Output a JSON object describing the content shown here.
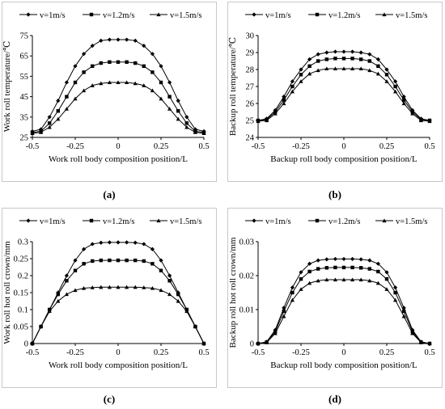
{
  "legend": [
    "v=1m/s",
    "v=1.2m/s",
    "v=1.5m/s"
  ],
  "captions": [
    "(a)",
    "(b)",
    "(c)",
    "(d)"
  ],
  "chart_data": [
    {
      "type": "line",
      "xlabel": "Work roll body composition position/L",
      "ylabel": "Work roll temperature/℃",
      "xlim": [
        -0.5,
        0.5
      ],
      "ylim": [
        25,
        75
      ],
      "xticks": [
        "-0.5",
        "-0.25",
        "0",
        "0.25",
        "0.5"
      ],
      "yticks": [
        "25",
        "35",
        "45",
        "55",
        "65",
        "75"
      ],
      "x": [
        -0.5,
        -0.45,
        -0.4,
        -0.35,
        -0.3,
        -0.25,
        -0.2,
        -0.15,
        -0.1,
        -0.05,
        0,
        0.05,
        0.1,
        0.15,
        0.2,
        0.25,
        0.3,
        0.35,
        0.4,
        0.45,
        0.5
      ],
      "series": [
        {
          "name": "v=1m/s",
          "marker": "diamond",
          "values": [
            28,
            29,
            35,
            43,
            52,
            60,
            66,
            70,
            72.5,
            73,
            73,
            73,
            72.5,
            70,
            66,
            60,
            52,
            43,
            35,
            29,
            28
          ]
        },
        {
          "name": "v=1.2m/s",
          "marker": "square",
          "values": [
            27.5,
            28,
            32,
            38,
            45,
            52,
            57,
            60,
            61.5,
            62,
            62,
            62,
            61.5,
            60,
            57,
            52,
            45,
            38,
            32,
            28,
            27.5
          ]
        },
        {
          "name": "v=1.5m/s",
          "marker": "triangle",
          "values": [
            27,
            27.5,
            30,
            34,
            39,
            44,
            48,
            50.5,
            51.5,
            52,
            52,
            52,
            51.5,
            50.5,
            48,
            44,
            39,
            34,
            30,
            27.5,
            27
          ]
        }
      ]
    },
    {
      "type": "line",
      "xlabel": "Backup roll body composition position/L",
      "ylabel": "Backup roll temperature/℃",
      "xlim": [
        -0.5,
        0.5
      ],
      "ylim": [
        24,
        30
      ],
      "xticks": [
        "-0.5",
        "-0.25",
        "0",
        "0.25",
        "0.5"
      ],
      "yticks": [
        "24",
        "25",
        "26",
        "27",
        "28",
        "29",
        "30"
      ],
      "x": [
        -0.5,
        -0.45,
        -0.4,
        -0.35,
        -0.3,
        -0.25,
        -0.2,
        -0.15,
        -0.1,
        -0.05,
        0,
        0.05,
        0.1,
        0.15,
        0.2,
        0.25,
        0.3,
        0.35,
        0.4,
        0.45,
        0.5
      ],
      "series": [
        {
          "name": "v=1m/s",
          "marker": "diamond",
          "values": [
            25,
            25.1,
            25.6,
            26.4,
            27.3,
            28,
            28.6,
            28.9,
            29,
            29.05,
            29.05,
            29.05,
            29,
            28.9,
            28.6,
            28,
            27.3,
            26.4,
            25.6,
            25.1,
            25
          ]
        },
        {
          "name": "v=1.2m/s",
          "marker": "square",
          "values": [
            25,
            25.05,
            25.5,
            26.2,
            27,
            27.7,
            28.2,
            28.5,
            28.6,
            28.65,
            28.65,
            28.65,
            28.6,
            28.5,
            28.2,
            27.7,
            27,
            26.2,
            25.5,
            25.05,
            25
          ]
        },
        {
          "name": "v=1.5m/s",
          "marker": "triangle",
          "values": [
            24.95,
            25,
            25.4,
            26,
            26.7,
            27.3,
            27.75,
            27.95,
            28.05,
            28.05,
            28.05,
            28.05,
            28.05,
            27.95,
            27.75,
            27.3,
            26.7,
            26,
            25.4,
            25,
            24.95
          ]
        }
      ]
    },
    {
      "type": "line",
      "xlabel": "Work roll body composition position/L",
      "ylabel": "Work roll hot roll crown/mm",
      "xlim": [
        -0.5,
        0.5
      ],
      "ylim": [
        0,
        0.3
      ],
      "xticks": [
        "-0.5",
        "-0.25",
        "0",
        "0.25",
        "0.5"
      ],
      "yticks": [
        "0",
        "0.05",
        "0.1",
        "0.15",
        "0.2",
        "0.25",
        "0.3"
      ],
      "x": [
        -0.5,
        -0.45,
        -0.4,
        -0.35,
        -0.3,
        -0.25,
        -0.2,
        -0.15,
        -0.1,
        -0.05,
        0,
        0.05,
        0.1,
        0.15,
        0.2,
        0.25,
        0.3,
        0.35,
        0.4,
        0.45,
        0.5
      ],
      "series": [
        {
          "name": "v=1m/s",
          "marker": "diamond",
          "values": [
            0,
            0.05,
            0.1,
            0.15,
            0.2,
            0.245,
            0.278,
            0.293,
            0.297,
            0.298,
            0.298,
            0.298,
            0.297,
            0.293,
            0.278,
            0.245,
            0.2,
            0.15,
            0.1,
            0.05,
            0
          ]
        },
        {
          "name": "v=1.2m/s",
          "marker": "square",
          "values": [
            0,
            0.05,
            0.1,
            0.145,
            0.185,
            0.215,
            0.235,
            0.243,
            0.245,
            0.245,
            0.245,
            0.245,
            0.245,
            0.243,
            0.235,
            0.215,
            0.185,
            0.145,
            0.1,
            0.05,
            0
          ]
        },
        {
          "name": "v=1.5m/s",
          "marker": "triangle",
          "values": [
            0,
            0.05,
            0.095,
            0.125,
            0.145,
            0.157,
            0.163,
            0.165,
            0.166,
            0.166,
            0.166,
            0.166,
            0.166,
            0.165,
            0.163,
            0.157,
            0.145,
            0.125,
            0.095,
            0.05,
            0
          ]
        }
      ]
    },
    {
      "type": "line",
      "xlabel": "Backup roll body composition position/L",
      "ylabel": "Backup roll hot roll crown/mm",
      "xlim": [
        -0.5,
        0.5
      ],
      "ylim": [
        0,
        0.03
      ],
      "xticks": [
        "-0.5",
        "-0.25",
        "0",
        "0.25",
        "0.5"
      ],
      "yticks": [
        "0",
        "0.01",
        "0.02",
        "0.03"
      ],
      "x": [
        -0.5,
        -0.45,
        -0.4,
        -0.35,
        -0.3,
        -0.25,
        -0.2,
        -0.15,
        -0.1,
        -0.05,
        0,
        0.05,
        0.1,
        0.15,
        0.2,
        0.25,
        0.3,
        0.35,
        0.4,
        0.45,
        0.5
      ],
      "series": [
        {
          "name": "v=1m/s",
          "marker": "diamond",
          "values": [
            0,
            0.0005,
            0.004,
            0.0105,
            0.0165,
            0.021,
            0.0235,
            0.0245,
            0.0248,
            0.0249,
            0.0249,
            0.0249,
            0.0248,
            0.0245,
            0.0235,
            0.021,
            0.0165,
            0.0105,
            0.004,
            0.0005,
            0
          ]
        },
        {
          "name": "v=1.2m/s",
          "marker": "square",
          "values": [
            0,
            0.0004,
            0.0035,
            0.0095,
            0.015,
            0.019,
            0.0212,
            0.022,
            0.0223,
            0.0224,
            0.0224,
            0.0224,
            0.0223,
            0.022,
            0.0212,
            0.019,
            0.015,
            0.0095,
            0.0035,
            0.0004,
            0
          ]
        },
        {
          "name": "v=1.5m/s",
          "marker": "triangle",
          "values": [
            0,
            0.0003,
            0.003,
            0.008,
            0.0128,
            0.016,
            0.0178,
            0.0185,
            0.0188,
            0.0188,
            0.0188,
            0.0188,
            0.0188,
            0.0185,
            0.0178,
            0.016,
            0.0128,
            0.008,
            0.003,
            0.0003,
            0
          ]
        }
      ]
    }
  ]
}
